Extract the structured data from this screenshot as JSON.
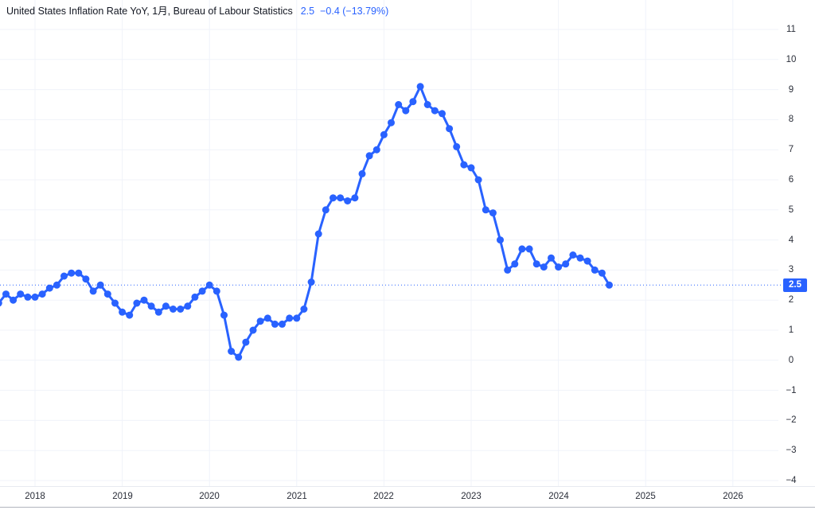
{
  "header": {
    "title": "United States Inflation Rate YoY, 1月, Bureau of Labour Statistics",
    "value": "2.5",
    "change": "−0.4 (−13.79%)"
  },
  "colors": {
    "accent": "#2962ff",
    "grid": "#f0f3fa",
    "title_text": "#131722",
    "axis_text": "#2a2e39",
    "axis_border": "#e7eaf0",
    "frame_line": "#b2b5be",
    "background": "#ffffff",
    "badge_text": "#ffffff"
  },
  "chart_data": {
    "type": "line",
    "title": "United States Inflation Rate YoY, 1月, Bureau of Labour Statistics",
    "frequency": "monthly",
    "marker": "circle",
    "grid": true,
    "line_color": "#2962ff",
    "start": {
      "year": 2017,
      "month": 8
    },
    "values": [
      1.9,
      2.2,
      2.0,
      2.2,
      2.1,
      2.1,
      2.2,
      2.4,
      2.5,
      2.8,
      2.9,
      2.9,
      2.7,
      2.3,
      2.5,
      2.2,
      1.9,
      1.6,
      1.5,
      1.9,
      2.0,
      1.8,
      1.6,
      1.8,
      1.7,
      1.7,
      1.8,
      2.1,
      2.3,
      2.5,
      2.3,
      1.5,
      0.3,
      0.1,
      0.6,
      1.0,
      1.3,
      1.4,
      1.2,
      1.2,
      1.4,
      1.4,
      1.7,
      2.6,
      4.2,
      5.0,
      5.4,
      5.4,
      5.3,
      5.4,
      6.2,
      6.8,
      7.0,
      7.5,
      7.9,
      8.5,
      8.3,
      8.6,
      9.1,
      8.5,
      8.3,
      8.2,
      7.7,
      7.1,
      6.5,
      6.4,
      6.0,
      5.0,
      4.9,
      4.0,
      3.0,
      3.2,
      3.7,
      3.7,
      3.2,
      3.1,
      3.4,
      3.1,
      3.2,
      3.5,
      3.4,
      3.3,
      3.0,
      2.9,
      2.5
    ],
    "last_value": 2.5,
    "change": -0.4,
    "change_pct": "−13.79%",
    "y_axis": {
      "ticks": [
        11,
        10,
        9,
        8,
        7,
        6,
        5,
        4,
        3,
        2,
        1,
        0,
        -1,
        -2,
        -3,
        -4
      ],
      "range_shown": [
        -4.2,
        11.2
      ],
      "current_value_label": "2.5"
    },
    "x_axis": {
      "ticks": [
        2018,
        2019,
        2020,
        2021,
        2022,
        2023,
        2024,
        2025,
        2026
      ]
    },
    "legend_position": "top-left"
  }
}
